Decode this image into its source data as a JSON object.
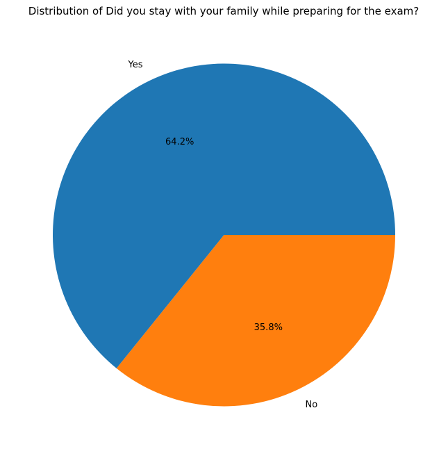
{
  "chart_data": {
    "type": "pie",
    "title": "Distribution of Did you stay with your family while preparing for the exam?",
    "categories": [
      "Yes",
      "No"
    ],
    "values": [
      64.2,
      35.8
    ],
    "value_labels": [
      "64.2%",
      "35.8%"
    ],
    "colors": [
      "#1f77b4",
      "#ff7f0e"
    ],
    "start_angle_deg": 0,
    "direction": "counterclockwise",
    "legend": "none"
  }
}
